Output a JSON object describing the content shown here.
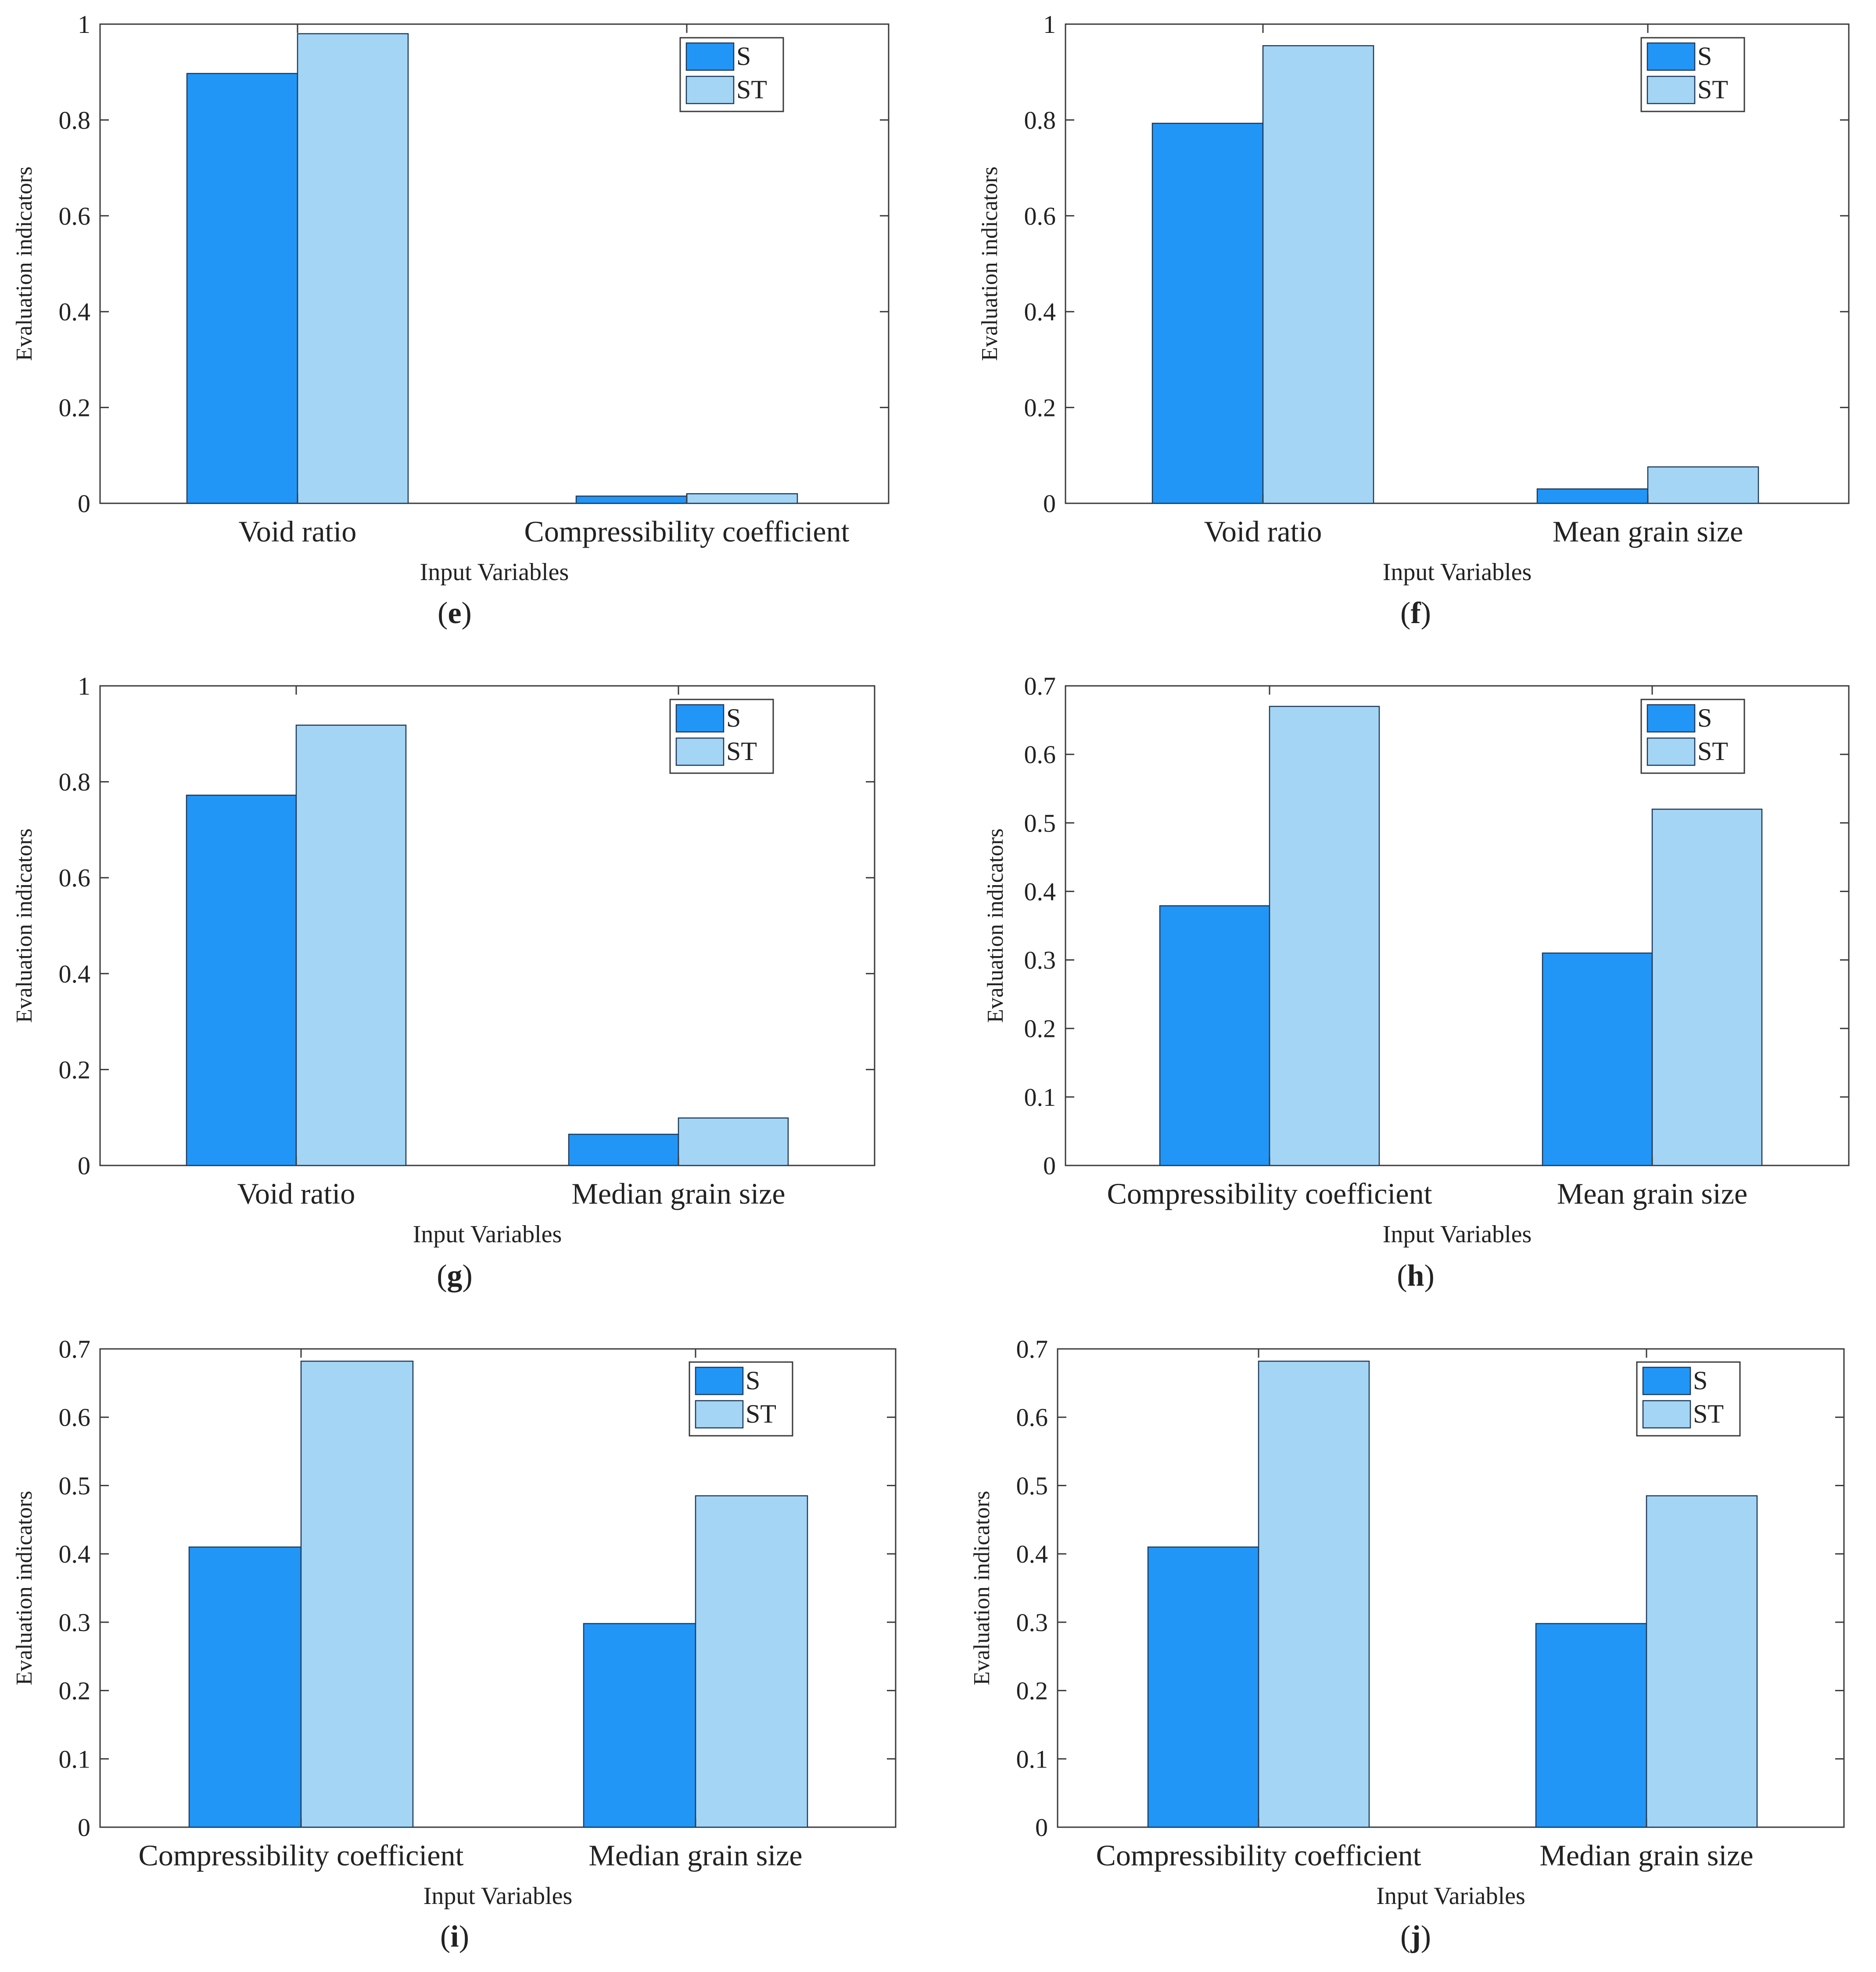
{
  "colors": {
    "S": "#2196f7",
    "ST": "#a5d5f5",
    "axis": "#3a3a3a",
    "bar_edge": "#1e3a5a"
  },
  "chart_data": [
    {
      "panel": "e",
      "panel_label": {
        "open": "(",
        "letter": "e",
        "close": ")"
      },
      "type": "bar",
      "categories": [
        "Void ratio",
        "Compressibility coefficient"
      ],
      "series": [
        {
          "name": "S",
          "values": [
            0.897,
            0.015
          ]
        },
        {
          "name": "ST",
          "values": [
            0.98,
            0.02
          ]
        }
      ],
      "ylim": [
        0,
        1
      ],
      "yticks": [
        0,
        0.2,
        0.4,
        0.6,
        0.8,
        1
      ],
      "ytick_labels": [
        "0",
        "0.2",
        "0.4",
        "0.6",
        "0.8",
        "1"
      ],
      "xlabel": "Input Variables",
      "ylabel": "Evaluation indicators",
      "legend": "top-right"
    },
    {
      "panel": "f",
      "panel_label": {
        "open": "(",
        "letter": "f",
        "close": ")"
      },
      "type": "bar",
      "categories": [
        "Void ratio",
        "Mean grain size"
      ],
      "series": [
        {
          "name": "S",
          "values": [
            0.793,
            0.03
          ]
        },
        {
          "name": "ST",
          "values": [
            0.955,
            0.076
          ]
        }
      ],
      "ylim": [
        0,
        1
      ],
      "yticks": [
        0,
        0.2,
        0.4,
        0.6,
        0.8,
        1
      ],
      "ytick_labels": [
        "0",
        "0.2",
        "0.4",
        "0.6",
        "0.8",
        "1"
      ],
      "xlabel": "Input Variables",
      "ylabel": "Evaluation indicators",
      "legend": "top-right"
    },
    {
      "panel": "g",
      "panel_label": {
        "open": "(",
        "letter": "g",
        "close": ")"
      },
      "type": "bar",
      "categories": [
        "Void ratio",
        "Median grain size"
      ],
      "series": [
        {
          "name": "S",
          "values": [
            0.772,
            0.065
          ]
        },
        {
          "name": "ST",
          "values": [
            0.918,
            0.099
          ]
        }
      ],
      "ylim": [
        0,
        1
      ],
      "yticks": [
        0,
        0.2,
        0.4,
        0.6,
        0.8,
        1
      ],
      "ytick_labels": [
        "0",
        "0.2",
        "0.4",
        "0.6",
        "0.8",
        "1"
      ],
      "xlabel": "Input Variables",
      "ylabel": "Evaluation indicators",
      "legend": "top-right"
    },
    {
      "panel": "h",
      "panel_label": {
        "open": "(",
        "letter": "h",
        "close": ")"
      },
      "type": "bar",
      "categories": [
        "Compressibility coefficient",
        "Mean grain size"
      ],
      "series": [
        {
          "name": "S",
          "values": [
            0.379,
            0.31
          ]
        },
        {
          "name": "ST",
          "values": [
            0.67,
            0.52
          ]
        }
      ],
      "ylim": [
        0,
        0.7
      ],
      "yticks": [
        0,
        0.1,
        0.2,
        0.3,
        0.4,
        0.5,
        0.6,
        0.7
      ],
      "ytick_labels": [
        "0",
        "0.1",
        "0.2",
        "0.3",
        "0.4",
        "0.5",
        "0.6",
        "0.7"
      ],
      "xlabel": "Input Variables",
      "ylabel": "Evaluation indicators",
      "legend": "top-right"
    },
    {
      "panel": "i",
      "panel_label": {
        "open": "(",
        "letter": "i",
        "close": ")"
      },
      "type": "bar",
      "categories": [
        "Compressibility coefficient",
        "Median grain size"
      ],
      "series": [
        {
          "name": "S",
          "values": [
            0.41,
            0.298
          ]
        },
        {
          "name": "ST",
          "values": [
            0.682,
            0.485
          ]
        }
      ],
      "ylim": [
        0,
        0.7
      ],
      "yticks": [
        0,
        0.1,
        0.2,
        0.3,
        0.4,
        0.5,
        0.6,
        0.7
      ],
      "ytick_labels": [
        "0",
        "0.1",
        "0.2",
        "0.3",
        "0.4",
        "0.5",
        "0.6",
        "0.7"
      ],
      "xlabel": "Input Variables",
      "ylabel": "Evaluation indicators",
      "legend": "top-right"
    },
    {
      "panel": "j",
      "panel_label": {
        "open": "(",
        "letter": "j",
        "close": ")"
      },
      "type": "bar",
      "categories": [
        "Compressibility coefficient",
        "Median grain size"
      ],
      "series": [
        {
          "name": "S",
          "values": [
            0.41,
            0.298
          ]
        },
        {
          "name": "ST",
          "values": [
            0.682,
            0.485
          ]
        }
      ],
      "ylim": [
        0,
        0.7
      ],
      "yticks": [
        0,
        0.1,
        0.2,
        0.3,
        0.4,
        0.5,
        0.6,
        0.7
      ],
      "ytick_labels": [
        "0",
        "0.1",
        "0.2",
        "0.3",
        "0.4",
        "0.5",
        "0.6",
        "0.7"
      ],
      "xlabel": "Input Variables",
      "ylabel": "Evaluation indicators",
      "legend": "top-right"
    }
  ]
}
